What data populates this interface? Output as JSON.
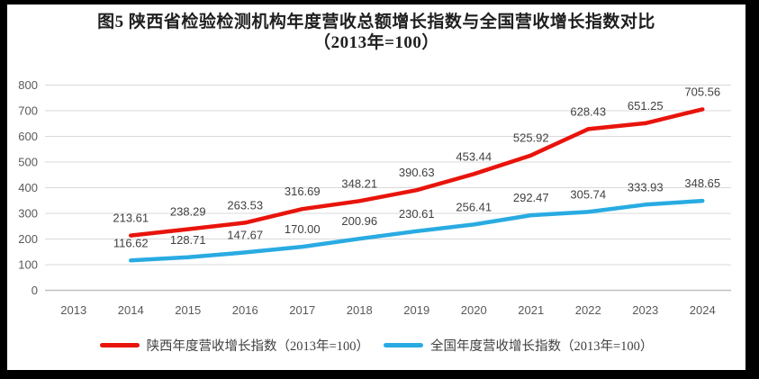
{
  "title": {
    "line1": "图5  陕西省检验检测机构年度营收总额增长指数与全国营收增长指数对比",
    "line2": "（2013年=100）"
  },
  "colors": {
    "shaanxi_line": "#e8140c",
    "national_line": "#29abe2",
    "gridline": "#d9d9d9",
    "axis_line": "#bfbfbf",
    "tick_text": "#595959",
    "data_label_text": "#404040",
    "title_text": "#1f1f1f",
    "plot_background": "#ffffff",
    "frame_border": "#000000"
  },
  "chart_data": {
    "type": "line",
    "categories": [
      "2013",
      "2014",
      "2015",
      "2016",
      "2017",
      "2018",
      "2019",
      "2020",
      "2021",
      "2022",
      "2023",
      "2024"
    ],
    "series": [
      {
        "name": "陕西年度营收增长指数（2013年=100）",
        "color_key": "shaanxi_line",
        "start_index": 1,
        "values": [
          213.61,
          238.29,
          263.53,
          316.69,
          348.21,
          390.63,
          453.44,
          525.92,
          628.43,
          651.25,
          705.56
        ],
        "labels": [
          "213.61",
          "238.29",
          "263.53",
          "316.69",
          "348.21",
          "390.63",
          "453.44",
          "525.92",
          "628.43",
          "651.25",
          "705.56"
        ]
      },
      {
        "name": "全国年度营收增长指数（2013年=100）",
        "color_key": "national_line",
        "start_index": 1,
        "values": [
          116.62,
          128.71,
          147.67,
          170.0,
          200.96,
          230.61,
          256.41,
          292.47,
          305.74,
          333.93,
          348.65
        ],
        "labels": [
          "116.62",
          "128.71",
          "147.67",
          "170.00",
          "200.96",
          "230.61",
          "256.41",
          "292.47",
          "305.74",
          "333.93",
          "348.65"
        ]
      }
    ],
    "ylim": [
      0,
      800
    ],
    "y_tick_labels": [
      "0",
      "100",
      "200",
      "300",
      "400",
      "500",
      "600",
      "700",
      "800"
    ],
    "y_tick_step": 100,
    "grid": "horizontal",
    "legend_position": "bottom",
    "data_labels_shown": true
  },
  "legend": {
    "items": [
      {
        "color_key": "shaanxi_line"
      },
      {
        "color_key": "national_line"
      }
    ]
  }
}
